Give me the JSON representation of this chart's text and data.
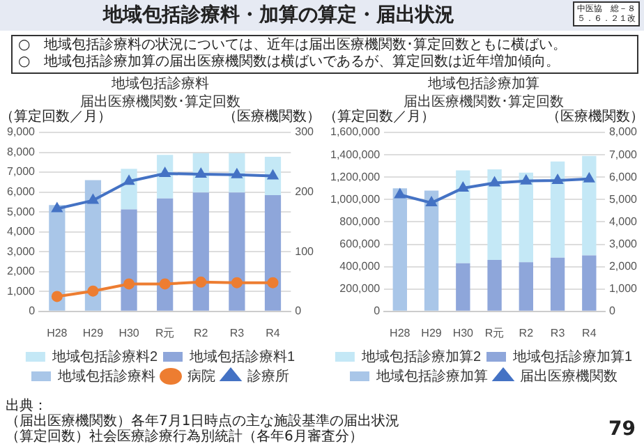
{
  "chart_data": [
    {
      "type": "bar",
      "title": "地域包括診療料",
      "subtitle": "届出医療機関数･算定回数",
      "ylabel": "（算定回数／月）",
      "y2label": "（医療機関数）",
      "categories": [
        "H28",
        "H29",
        "H30",
        "R元",
        "R2",
        "R3",
        "R4"
      ],
      "stacked": true,
      "grid": "y",
      "legend": "bottom",
      "ylim": [
        0,
        9000
      ],
      "yticks": [
        0,
        {
          "value": 1000,
          "label": "1,000"
        },
        {
          "value": 2000,
          "label": "2,000"
        },
        {
          "value": 3000,
          "label": "3,000"
        },
        {
          "value": 4000,
          "label": "4,000"
        },
        {
          "value": 5000,
          "label": "5,000"
        },
        {
          "value": 6000,
          "label": "6,000"
        },
        {
          "value": 7000,
          "label": "7,000"
        },
        {
          "value": 8000,
          "label": "8,000"
        },
        {
          "value": 9000,
          "label": "9,000"
        }
      ],
      "y2lim": [
        0,
        300
      ],
      "y2ticks": [
        0,
        100,
        200,
        300
      ],
      "series": [
        {
          "name": "地域包括診療料",
          "color": "#a9c6e8",
          "values": [
            5350,
            6600,
            null,
            null,
            null,
            null,
            null
          ]
        },
        {
          "name": "地域包括診療料1",
          "color": "#8ea6da",
          "values": [
            null,
            null,
            5130,
            5680,
            5980,
            5980,
            5850
          ]
        },
        {
          "name": "地域包括診療料2",
          "color": "#c4e8f6",
          "values": [
            null,
            null,
            2040,
            2190,
            1980,
            1980,
            1920
          ]
        },
        {
          "name": "病院",
          "type": "line",
          "axis": "y2",
          "marker": "circle",
          "color": "#ed7d31",
          "values": [
            25,
            34,
            46,
            46,
            49,
            48,
            48
          ]
        },
        {
          "name": "診療所",
          "type": "line",
          "axis": "y2",
          "marker": "triangle",
          "color": "#4472c4",
          "values": [
            172,
            186,
            218,
            231,
            230,
            229,
            227
          ]
        }
      ],
      "annotations": [
        "地域包括診療料・加算の算定・届出状況",
        "中医協　総－８",
        "５．６．２１改",
        "○　地域包括診療料の状況については、近年は届出医療機関数･算定回数ともに横ばい。",
        "○　地域包括診療加算の届出医療機関数は横ばいであるが、算定回数は近年増加傾向。",
        "出典：",
        "（届出医療機関数）各年7月1日時点の主な施設基準の届出状況",
        "（算定回数）社会医療診療行為別統計（各年6月審査分）",
        "79"
      ]
    },
    {
      "type": "bar",
      "title": "地域包括診療加算",
      "subtitle": "届出医療機関数･算定回数",
      "ylabel": "（算定回数／月）",
      "y2label": "（医療機関数）",
      "categories": [
        "H28",
        "H29",
        "H30",
        "R元",
        "R2",
        "R3",
        "R4"
      ],
      "stacked": true,
      "grid": "y",
      "legend": "bottom",
      "ylim": [
        0,
        1600000
      ],
      "yticks": [
        0,
        {
          "value": 200000,
          "label": "200,000"
        },
        {
          "value": 400000,
          "label": "400,000"
        },
        {
          "value": 600000,
          "label": "600,000"
        },
        {
          "value": 800000,
          "label": "800,000"
        },
        {
          "value": 1000000,
          "label": "1,000,000"
        },
        {
          "value": 1200000,
          "label": "1,200,000"
        },
        {
          "value": 1400000,
          "label": "1,400,000"
        },
        {
          "value": 1600000,
          "label": "1,600,000"
        }
      ],
      "y2lim": [
        0,
        8000
      ],
      "y2ticks": [
        0,
        {
          "value": 1000,
          "label": "1,000"
        },
        {
          "value": 2000,
          "label": "2,000"
        },
        {
          "value": 3000,
          "label": "3,000"
        },
        {
          "value": 4000,
          "label": "4,000"
        },
        {
          "value": 5000,
          "label": "5,000"
        },
        {
          "value": 6000,
          "label": "6,000"
        },
        {
          "value": 7000,
          "label": "7,000"
        },
        {
          "value": 8000,
          "label": "8,000"
        }
      ],
      "series": [
        {
          "name": "地域包括診療加算",
          "color": "#a9c6e8",
          "values": [
            1100000,
            1080000,
            null,
            null,
            null,
            null,
            null
          ]
        },
        {
          "name": "地域包括診療加算1",
          "color": "#8ea6da",
          "values": [
            null,
            null,
            430000,
            460000,
            440000,
            480000,
            500000
          ]
        },
        {
          "name": "地域包括診療加算2",
          "color": "#c4e8f6",
          "values": [
            null,
            null,
            830000,
            810000,
            800000,
            860000,
            890000
          ]
        },
        {
          "name": "届出医療機関数",
          "type": "line",
          "axis": "y2",
          "marker": "triangle",
          "color": "#4472c4",
          "values": [
            5210,
            4850,
            5510,
            5740,
            5830,
            5850,
            5920
          ]
        }
      ]
    }
  ]
}
